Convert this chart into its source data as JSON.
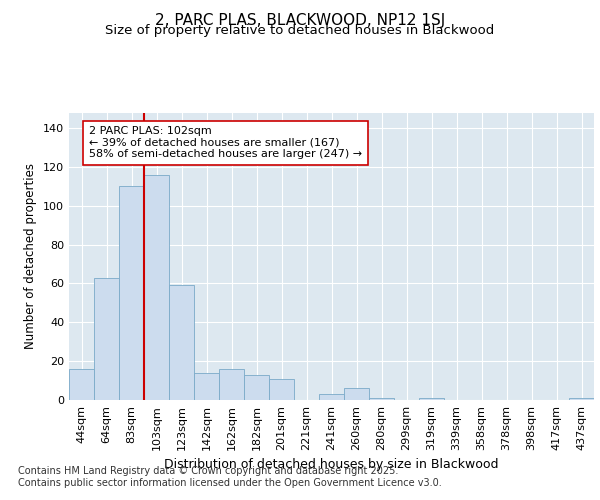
{
  "title": "2, PARC PLAS, BLACKWOOD, NP12 1SJ",
  "subtitle": "Size of property relative to detached houses in Blackwood",
  "xlabel": "Distribution of detached houses by size in Blackwood",
  "ylabel": "Number of detached properties",
  "categories": [
    "44sqm",
    "64sqm",
    "83sqm",
    "103sqm",
    "123sqm",
    "142sqm",
    "162sqm",
    "182sqm",
    "201sqm",
    "221sqm",
    "241sqm",
    "260sqm",
    "280sqm",
    "299sqm",
    "319sqm",
    "339sqm",
    "358sqm",
    "378sqm",
    "398sqm",
    "417sqm",
    "437sqm"
  ],
  "values": [
    16,
    63,
    110,
    116,
    59,
    14,
    16,
    13,
    11,
    0,
    3,
    6,
    1,
    0,
    1,
    0,
    0,
    0,
    0,
    0,
    1
  ],
  "bar_color": "#ccdcee",
  "bar_edge_color": "#7aaac8",
  "highlight_bar_index": 3,
  "highlight_line_color": "#cc0000",
  "annotation_text": "2 PARC PLAS: 102sqm\n← 39% of detached houses are smaller (167)\n58% of semi-detached houses are larger (247) →",
  "annotation_box_color": "#ffffff",
  "annotation_box_edge_color": "#cc0000",
  "ylim": [
    0,
    148
  ],
  "yticks": [
    0,
    20,
    40,
    60,
    80,
    100,
    120,
    140
  ],
  "plot_bg_color": "#dde8f0",
  "grid_color": "#ffffff",
  "fig_bg_color": "#ffffff",
  "footer_text": "Contains HM Land Registry data © Crown copyright and database right 2025.\nContains public sector information licensed under the Open Government Licence v3.0.",
  "title_fontsize": 11,
  "subtitle_fontsize": 9.5,
  "xlabel_fontsize": 9,
  "ylabel_fontsize": 8.5,
  "tick_fontsize": 8,
  "annotation_fontsize": 8,
  "footer_fontsize": 7
}
